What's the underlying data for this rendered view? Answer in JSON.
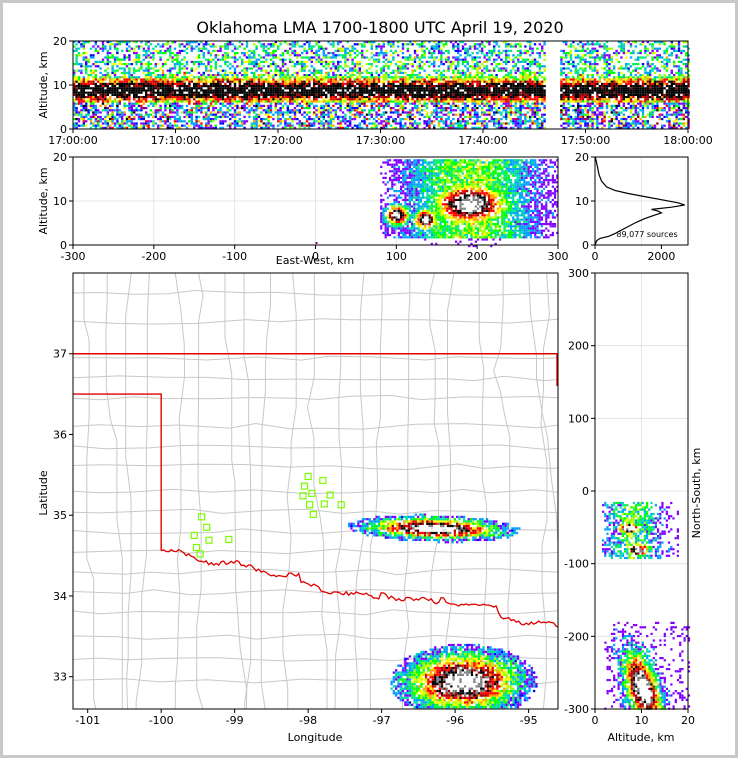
{
  "title": "Oklahoma LMA 1700-1800 UTC April 19, 2020",
  "colors": {
    "state_border": "#e00000",
    "county_lines": "#c8c8c8",
    "stations": "#7cfc00",
    "density_ramp": [
      "#0000ff",
      "#8000ff",
      "#00a0ff",
      "#00e0a0",
      "#00ff00",
      "#a0ff00",
      "#ffff00",
      "#ffa000",
      "#ff0000",
      "#a00000",
      "#000000",
      "#808080",
      "#ffffff"
    ]
  },
  "chart_data": [
    {
      "id": "time-height",
      "type": "heatmap",
      "ylabel": "Altitude, km",
      "ylim": [
        0,
        20
      ],
      "yticks": [
        "0",
        "10",
        "20"
      ],
      "xticks": [
        "17:00:00",
        "17:10:00",
        "17:20:00",
        "17:30:00",
        "17:40:00",
        "17:50:00",
        "18:00:00"
      ],
      "xlim_minutes": [
        0,
        60
      ],
      "data_gap_minutes": [
        46,
        47.5
      ],
      "core_altitude_km": [
        7,
        11
      ]
    },
    {
      "id": "east-west-altitude",
      "type": "heatmap",
      "xlabel": "East-West, km",
      "ylabel": "Altitude, km",
      "xlim": [
        -300,
        300
      ],
      "ylim": [
        0,
        20
      ],
      "xticks": [
        "-300",
        "-200",
        "-100",
        "0",
        "100",
        "200",
        "300"
      ],
      "yticks": [
        "0",
        "10",
        "20"
      ],
      "cores": [
        {
          "x_km": 100,
          "alt_km": 7
        },
        {
          "x_km": 135,
          "alt_km": 6
        },
        {
          "x_km": 190,
          "alt_km": 9.5
        }
      ]
    },
    {
      "id": "altitude-histogram",
      "type": "line",
      "annotation": "89,077 sources",
      "xlim": [
        0,
        2800
      ],
      "ylim": [
        0,
        20
      ],
      "xticks": [
        "0",
        "2000"
      ],
      "yticks": [
        "0",
        "10",
        "20"
      ],
      "points": [
        [
          0,
          0
        ],
        [
          50,
          1
        ],
        [
          150,
          1.5
        ],
        [
          420,
          2
        ],
        [
          600,
          2.6
        ],
        [
          750,
          3.2
        ],
        [
          950,
          4
        ],
        [
          1200,
          5
        ],
        [
          1500,
          6
        ],
        [
          1800,
          6.8
        ],
        [
          2000,
          7.3
        ],
        [
          1900,
          7.7
        ],
        [
          1700,
          8.1
        ],
        [
          2300,
          8.6
        ],
        [
          2700,
          9.1
        ],
        [
          2500,
          9.6
        ],
        [
          2000,
          10.3
        ],
        [
          1500,
          11
        ],
        [
          1000,
          11.7
        ],
        [
          600,
          12.4
        ],
        [
          350,
          13.2
        ],
        [
          200,
          14.5
        ],
        [
          120,
          16
        ],
        [
          80,
          17.5
        ],
        [
          40,
          19
        ],
        [
          10,
          20
        ]
      ]
    },
    {
      "id": "plan-view",
      "type": "heatmap",
      "xlabel": "Longitude",
      "ylabel": "Latitude",
      "xlim": [
        -101.2,
        -94.6
      ],
      "ylim": [
        32.6,
        38.0
      ],
      "xticks": [
        "-101",
        "-100",
        "-99",
        "-98",
        "-97",
        "-96",
        "-95"
      ],
      "yticks": [
        "33",
        "34",
        "35",
        "36",
        "37"
      ],
      "stations": [
        [
          -99.55,
          34.75
        ],
        [
          -99.45,
          34.98
        ],
        [
          -99.38,
          34.85
        ],
        [
          -99.35,
          34.69
        ],
        [
          -99.52,
          34.6
        ],
        [
          -99.47,
          34.52
        ],
        [
          -99.08,
          34.7
        ],
        [
          -98.0,
          35.48
        ],
        [
          -98.05,
          35.36
        ],
        [
          -98.07,
          35.24
        ],
        [
          -97.95,
          35.27
        ],
        [
          -97.98,
          35.13
        ],
        [
          -97.93,
          35.01
        ],
        [
          -97.8,
          35.43
        ],
        [
          -97.78,
          35.14
        ],
        [
          -97.7,
          35.25
        ],
        [
          -97.55,
          35.13
        ]
      ],
      "storms": [
        {
          "lon": -96.3,
          "lat": 34.85,
          "extent_lon": 0.9,
          "extent_lat": 0.35
        },
        {
          "lon": -95.9,
          "lat": 32.95,
          "extent_lon": 0.75,
          "extent_lat": 0.35
        }
      ]
    },
    {
      "id": "north-south-altitude",
      "type": "heatmap",
      "xlabel": "Altitude, km",
      "ylabel": "North-South, km",
      "xlim": [
        0,
        20
      ],
      "ylim": [
        -300,
        300
      ],
      "xticks": [
        "0",
        "10",
        "20"
      ],
      "yticks": [
        "-300",
        "-200",
        "-100",
        "0",
        "100",
        "200",
        "300"
      ],
      "cores": [
        {
          "alt_km": 7,
          "y_km": -50
        },
        {
          "alt_km": 9,
          "y_km": -80
        },
        {
          "alt_km": 10,
          "y_km": -270
        }
      ]
    }
  ]
}
